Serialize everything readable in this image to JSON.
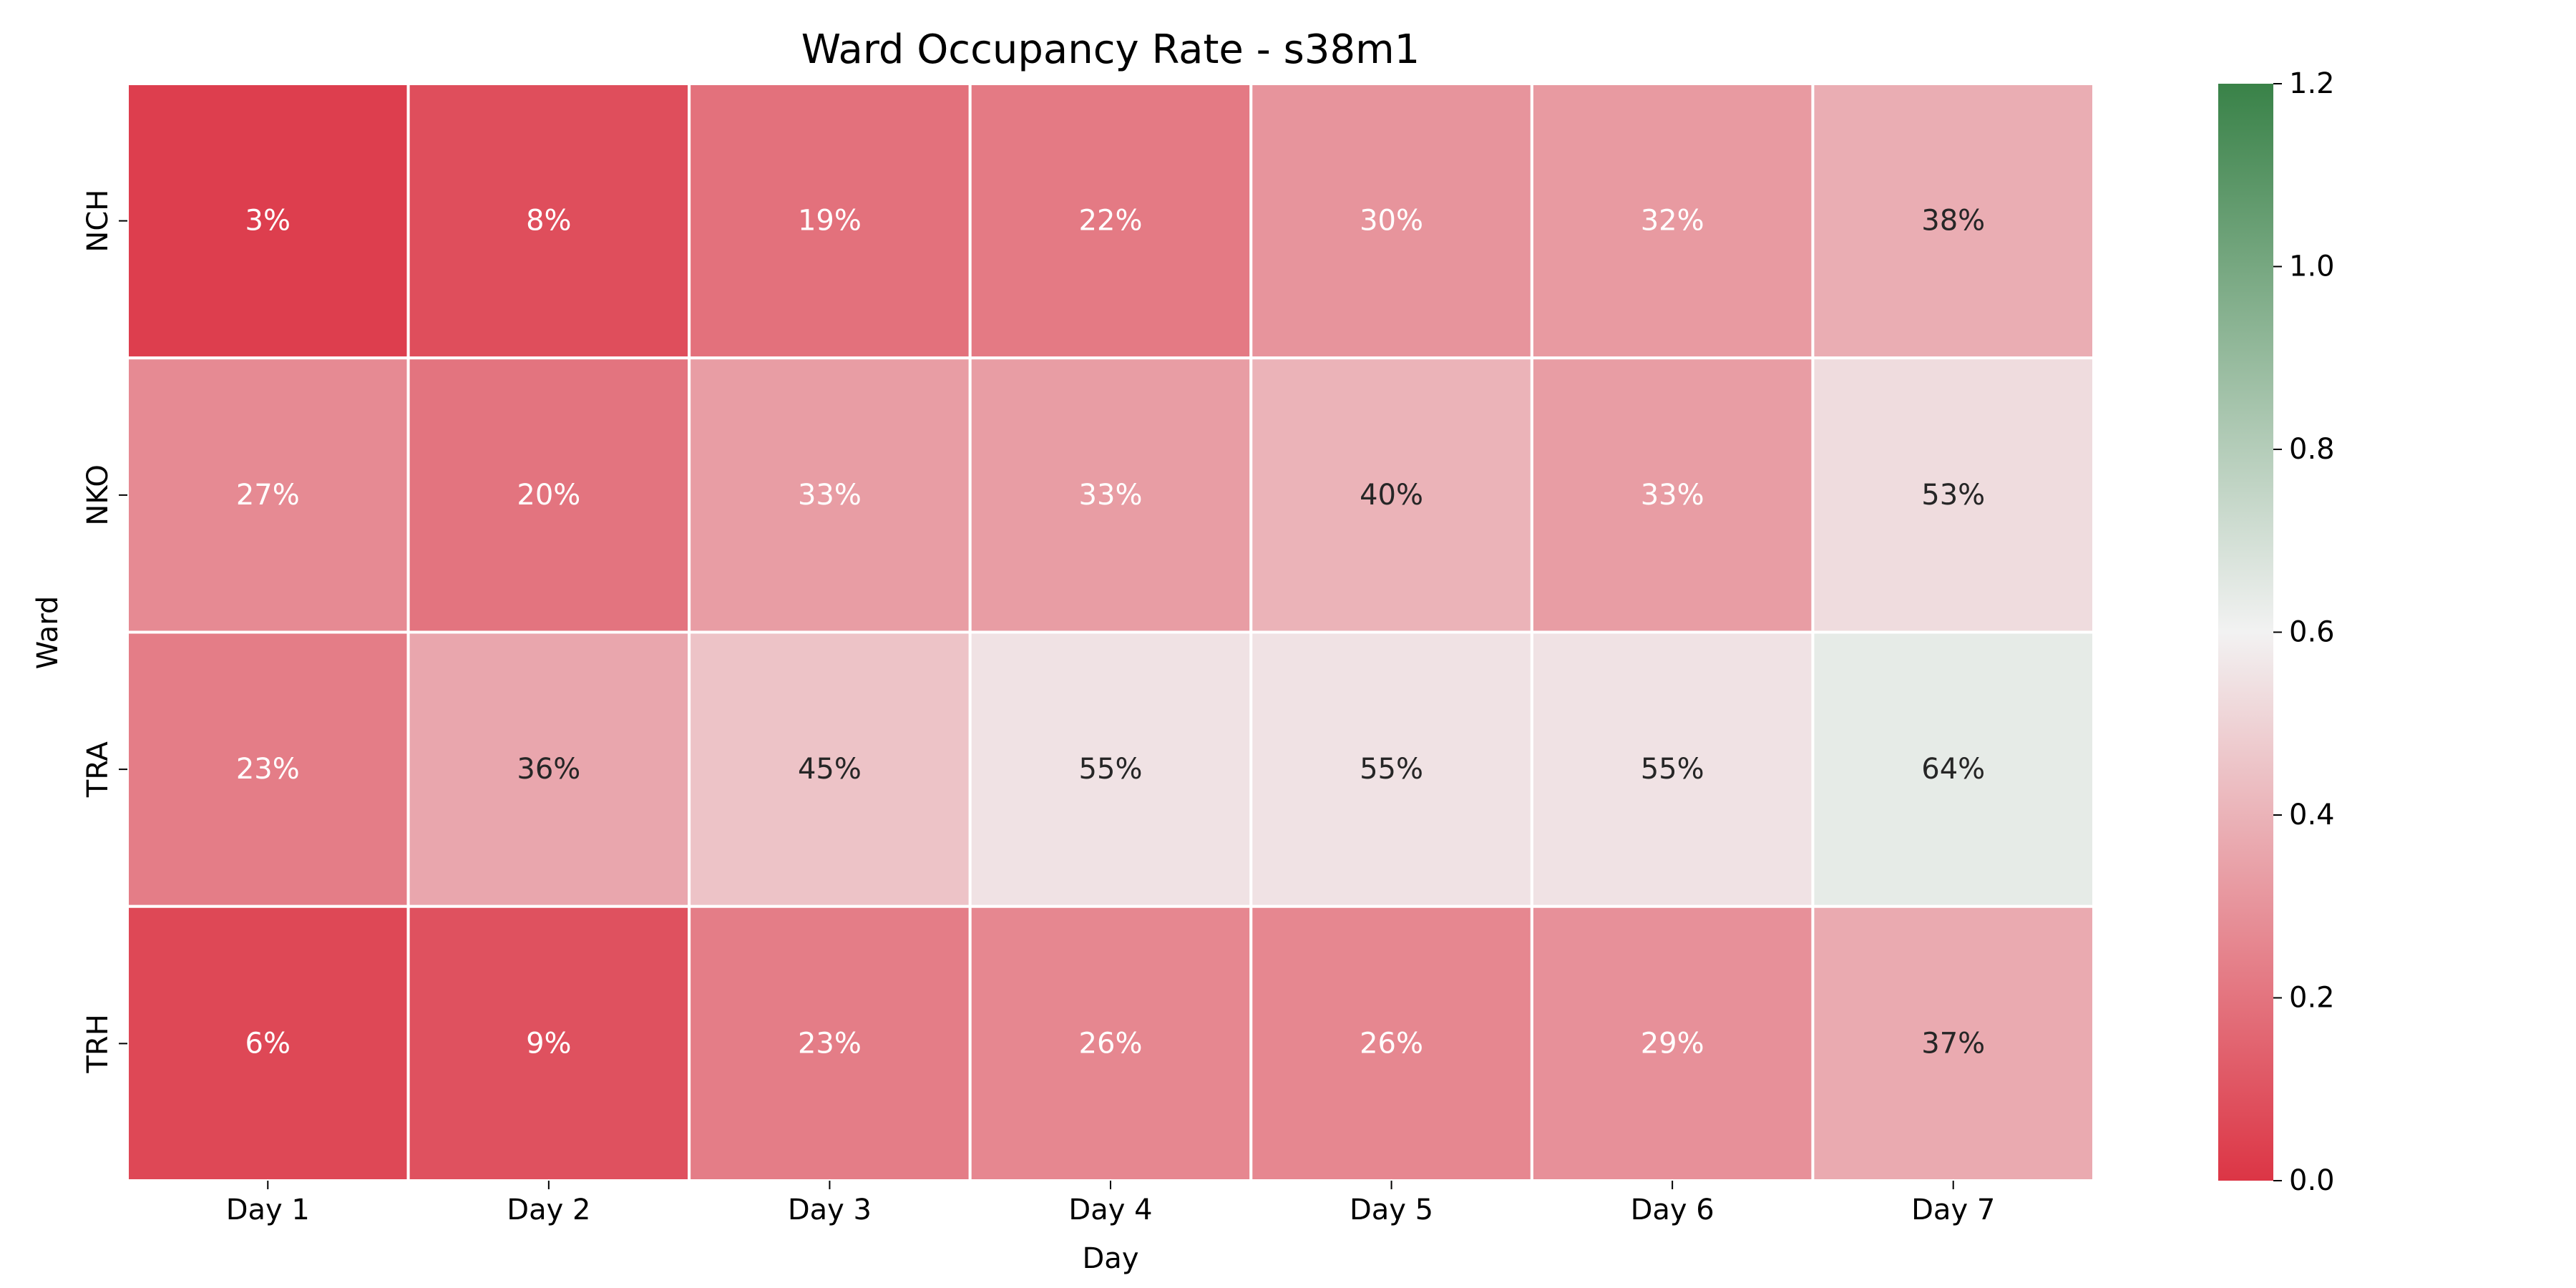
{
  "chart_data": {
    "type": "heatmap",
    "title": "Ward Occupancy Rate - s38m1",
    "xlabel": "Day",
    "ylabel": "Ward",
    "x_categories": [
      "Day 1",
      "Day 2",
      "Day 3",
      "Day 4",
      "Day 5",
      "Day 6",
      "Day 7"
    ],
    "y_categories": [
      "NCH",
      "NKO",
      "TRA",
      "TRH"
    ],
    "values": [
      [
        0.03,
        0.08,
        0.19,
        0.22,
        0.3,
        0.32,
        0.38
      ],
      [
        0.27,
        0.2,
        0.33,
        0.33,
        0.4,
        0.33,
        0.53
      ],
      [
        0.23,
        0.36,
        0.45,
        0.55,
        0.55,
        0.55,
        0.64
      ],
      [
        0.06,
        0.09,
        0.23,
        0.26,
        0.26,
        0.29,
        0.37
      ]
    ],
    "cell_labels": [
      [
        "3%",
        "8%",
        "19%",
        "22%",
        "30%",
        "32%",
        "38%"
      ],
      [
        "27%",
        "20%",
        "33%",
        "33%",
        "40%",
        "33%",
        "53%"
      ],
      [
        "23%",
        "36%",
        "45%",
        "55%",
        "55%",
        "55%",
        "64%"
      ],
      [
        "6%",
        "9%",
        "23%",
        "26%",
        "26%",
        "29%",
        "37%"
      ]
    ],
    "color_range": [
      0.0,
      1.2
    ],
    "colorbar_ticks": [
      "0.0",
      "0.2",
      "0.4",
      "0.6",
      "0.8",
      "1.0",
      "1.2"
    ],
    "colormap": [
      "#dc3545",
      "#f2f2f2",
      "#398248"
    ],
    "grid": false,
    "legend": "colorbar-right"
  }
}
